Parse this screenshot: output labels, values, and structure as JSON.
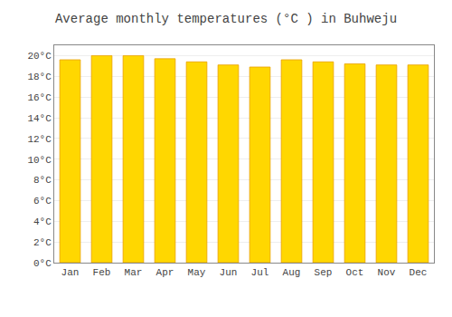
{
  "chart_data": {
    "type": "bar",
    "title": "Average monthly temperatures (°C ) in Buhweju",
    "categories": [
      "Jan",
      "Feb",
      "Mar",
      "Apr",
      "May",
      "Jun",
      "Jul",
      "Aug",
      "Sep",
      "Oct",
      "Nov",
      "Dec"
    ],
    "values": [
      19.6,
      20.0,
      20.0,
      19.7,
      19.4,
      19.1,
      18.9,
      19.6,
      19.4,
      19.2,
      19.1,
      19.1
    ],
    "color": "#FFD700",
    "ylim": [
      0,
      21
    ],
    "yticks": [
      {
        "value": 0,
        "label": "0°C"
      },
      {
        "value": 2,
        "label": "2°C"
      },
      {
        "value": 4,
        "label": "4°C"
      },
      {
        "value": 6,
        "label": "6°C"
      },
      {
        "value": 8,
        "label": "8°C"
      },
      {
        "value": 10,
        "label": "10°C"
      },
      {
        "value": 12,
        "label": "12°C"
      },
      {
        "value": 14,
        "label": "14°C"
      },
      {
        "value": 16,
        "label": "16°C"
      },
      {
        "value": 18,
        "label": "18°C"
      },
      {
        "value": 20,
        "label": "20°C"
      }
    ],
    "grid": true
  }
}
